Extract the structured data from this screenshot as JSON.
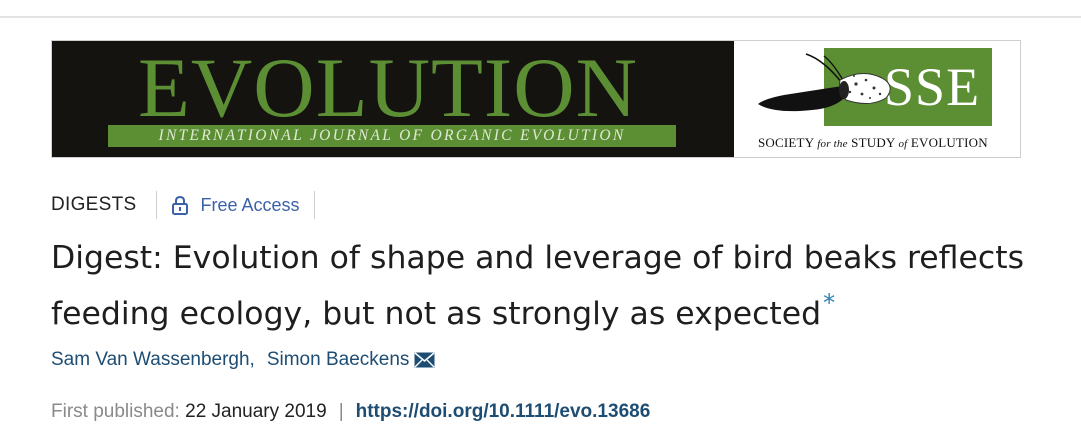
{
  "banner": {
    "journal_name": "EVOLUTION",
    "journal_subtitle": "INTERNATIONAL JOURNAL OF ORGANIC EVOLUTION",
    "society_abbrev": "SSE",
    "society_name_parts": [
      "SOCIETY",
      "for the",
      "STUDY",
      "of",
      "EVOLUTION"
    ],
    "brand_green": "#5c8f34",
    "banner_dark": "#141310"
  },
  "meta": {
    "section": "DIGESTS",
    "access_label": "Free Access",
    "lock_icon": "lock-icon"
  },
  "article": {
    "title": "Digest: Evolution of shape and leverage of bird beaks reflects feeding ecology, but not as strongly as expected",
    "footnote_marker": "*"
  },
  "authors": [
    {
      "name": "Sam Van Wassenbergh",
      "separator": ","
    },
    {
      "name": "Simon Baeckens",
      "separator": ""
    }
  ],
  "authors_icon": "envelope-icon",
  "publication": {
    "label": "First published:",
    "date": "22 January 2019",
    "separator": "|",
    "doi": "https://doi.org/10.1111/evo.13686"
  },
  "colors": {
    "link_blue": "#1e4d73",
    "access_blue": "#3b62a8",
    "muted_gray": "#8a8a8a"
  }
}
